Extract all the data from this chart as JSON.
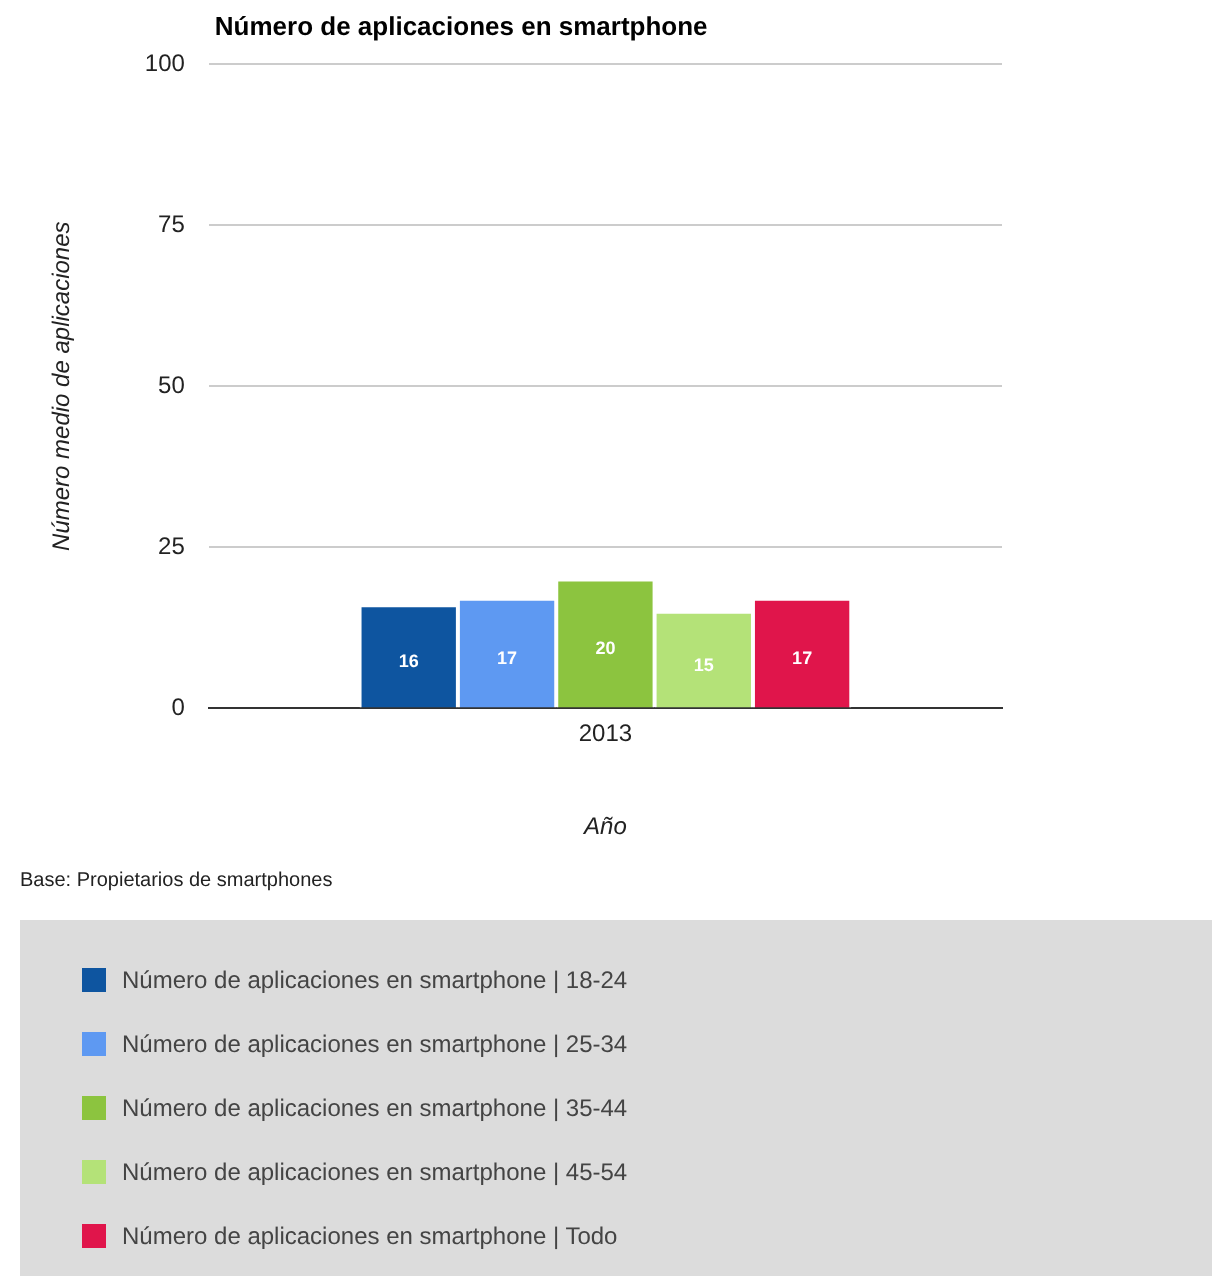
{
  "chart_data": {
    "type": "bar",
    "title": "Número de aplicaciones en smartphone",
    "xlabel": "Año",
    "ylabel": "Número medio de aplicaciones",
    "categories": [
      "2013"
    ],
    "series": [
      {
        "name": "Número de aplicaciones en smartphone | 18-24",
        "color": "#0e55a0",
        "values": [
          16
        ]
      },
      {
        "name": "Número de aplicaciones en smartphone | 25-34",
        "color": "#5e99f2",
        "values": [
          17
        ]
      },
      {
        "name": "Número de aplicaciones en smartphone | 35-44",
        "color": "#8cc43f",
        "values": [
          20
        ]
      },
      {
        "name": "Número de aplicaciones en smartphone | 45-54",
        "color": "#b4e278",
        "values": [
          15
        ]
      },
      {
        "name": "Número de aplicaciones en smartphone | Todo",
        "color": "#e0154b",
        "values": [
          17
        ]
      }
    ],
    "ylim": [
      0,
      100
    ],
    "yticks": [
      0,
      25,
      50,
      75,
      100
    ],
    "grid": "y",
    "data_labels": true,
    "legend": "bottom",
    "annotations": [
      "Base: Propietarios de smartphones"
    ]
  }
}
